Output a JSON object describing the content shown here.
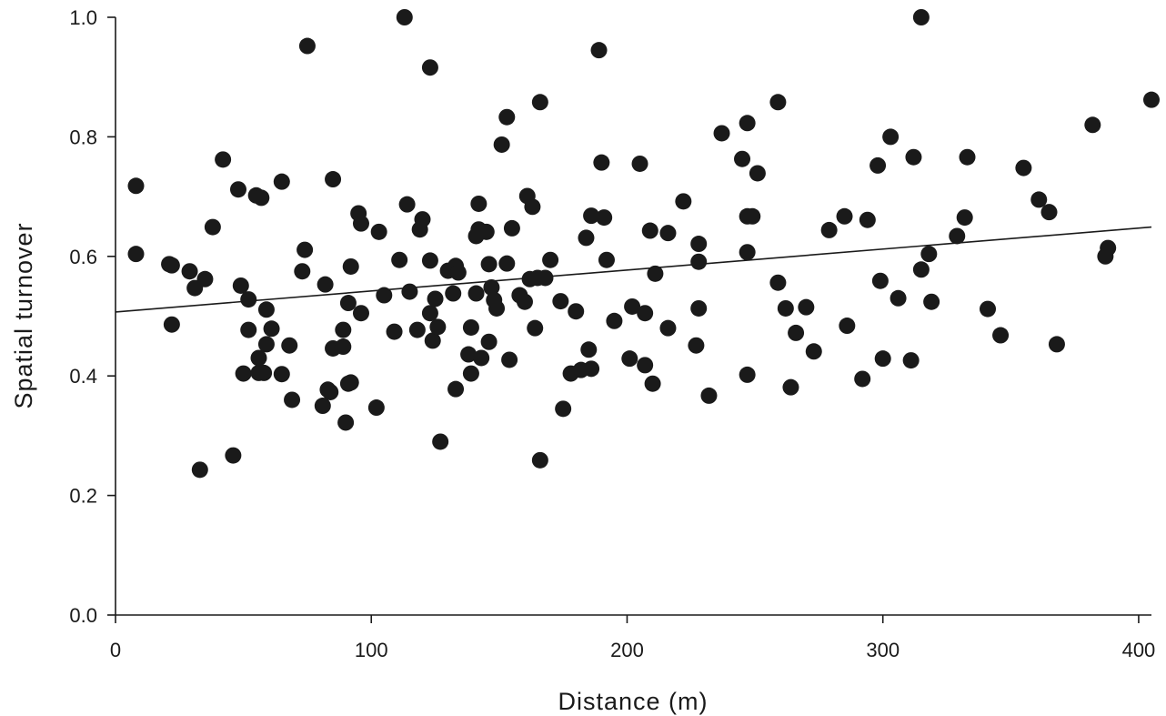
{
  "chart_data": {
    "type": "scatter",
    "title": "",
    "xlabel": "Distance (m)",
    "ylabel": "Spatial turnover",
    "xlim": [
      0,
      405
    ],
    "ylim": [
      0,
      1.0
    ],
    "xticks": [
      0,
      100,
      200,
      300,
      400
    ],
    "xtick_labels": [
      "0",
      "100",
      "200",
      "300",
      "400"
    ],
    "yticks": [
      0.0,
      0.2,
      0.4,
      0.6,
      0.8,
      1.0
    ],
    "ytick_labels": [
      "0.0",
      "0.2",
      "0.4",
      "0.6",
      "0.8",
      "1.0"
    ],
    "grid": false,
    "legend": "none",
    "point_color": "#1a1a1a",
    "trendline": {
      "x": [
        0,
        405
      ],
      "y": [
        0.507,
        0.649
      ]
    },
    "points": [
      [
        8,
        0.604
      ],
      [
        8,
        0.718
      ],
      [
        21,
        0.587
      ],
      [
        22,
        0.585
      ],
      [
        22,
        0.486
      ],
      [
        29,
        0.575
      ],
      [
        31,
        0.547
      ],
      [
        33,
        0.243
      ],
      [
        35,
        0.562
      ],
      [
        38,
        0.649
      ],
      [
        42,
        0.762
      ],
      [
        46,
        0.267
      ],
      [
        48,
        0.712
      ],
      [
        49,
        0.551
      ],
      [
        50,
        0.404
      ],
      [
        52,
        0.477
      ],
      [
        52,
        0.528
      ],
      [
        55,
        0.702
      ],
      [
        56,
        0.405
      ],
      [
        56,
        0.43
      ],
      [
        57,
        0.698
      ],
      [
        58,
        0.405
      ],
      [
        59,
        0.453
      ],
      [
        59,
        0.511
      ],
      [
        61,
        0.479
      ],
      [
        65,
        0.403
      ],
      [
        65,
        0.725
      ],
      [
        68,
        0.451
      ],
      [
        69,
        0.36
      ],
      [
        73,
        0.575
      ],
      [
        74,
        0.611
      ],
      [
        75,
        0.952
      ],
      [
        81,
        0.35
      ],
      [
        82,
        0.553
      ],
      [
        83,
        0.377
      ],
      [
        84,
        0.373
      ],
      [
        85,
        0.446
      ],
      [
        85,
        0.729
      ],
      [
        89,
        0.449
      ],
      [
        89,
        0.477
      ],
      [
        90,
        0.322
      ],
      [
        91,
        0.522
      ],
      [
        91,
        0.387
      ],
      [
        92,
        0.389
      ],
      [
        92,
        0.583
      ],
      [
        95,
        0.672
      ],
      [
        96,
        0.655
      ],
      [
        96,
        0.505
      ],
      [
        102,
        0.347
      ],
      [
        103,
        0.641
      ],
      [
        105,
        0.535
      ],
      [
        109,
        0.474
      ],
      [
        111,
        0.594
      ],
      [
        113,
        1.0
      ],
      [
        114,
        0.687
      ],
      [
        115,
        0.541
      ],
      [
        118,
        0.477
      ],
      [
        119,
        0.645
      ],
      [
        120,
        0.662
      ],
      [
        123,
        0.593
      ],
      [
        123,
        0.505
      ],
      [
        123,
        0.916
      ],
      [
        124,
        0.459
      ],
      [
        125,
        0.529
      ],
      [
        126,
        0.482
      ],
      [
        127,
        0.29
      ],
      [
        130,
        0.576
      ],
      [
        132,
        0.538
      ],
      [
        133,
        0.378
      ],
      [
        133,
        0.584
      ],
      [
        134,
        0.573
      ],
      [
        138,
        0.436
      ],
      [
        139,
        0.404
      ],
      [
        139,
        0.481
      ],
      [
        141,
        0.634
      ],
      [
        141,
        0.538
      ],
      [
        142,
        0.688
      ],
      [
        142,
        0.645
      ],
      [
        143,
        0.43
      ],
      [
        145,
        0.641
      ],
      [
        146,
        0.587
      ],
      [
        146,
        0.457
      ],
      [
        147,
        0.548
      ],
      [
        148,
        0.527
      ],
      [
        149,
        0.513
      ],
      [
        151,
        0.787
      ],
      [
        153,
        0.588
      ],
      [
        153,
        0.833
      ],
      [
        154,
        0.427
      ],
      [
        155,
        0.647
      ],
      [
        158,
        0.535
      ],
      [
        160,
        0.524
      ],
      [
        161,
        0.701
      ],
      [
        162,
        0.562
      ],
      [
        163,
        0.683
      ],
      [
        164,
        0.48
      ],
      [
        165,
        0.564
      ],
      [
        166,
        0.259
      ],
      [
        166,
        0.858
      ],
      [
        168,
        0.564
      ],
      [
        170,
        0.594
      ],
      [
        174,
        0.525
      ],
      [
        175,
        0.345
      ],
      [
        178,
        0.404
      ],
      [
        180,
        0.508
      ],
      [
        182,
        0.41
      ],
      [
        184,
        0.631
      ],
      [
        185,
        0.444
      ],
      [
        186,
        0.668
      ],
      [
        186,
        0.412
      ],
      [
        189,
        0.945
      ],
      [
        190,
        0.757
      ],
      [
        191,
        0.665
      ],
      [
        192,
        0.594
      ],
      [
        195,
        0.492
      ],
      [
        201,
        0.429
      ],
      [
        202,
        0.516
      ],
      [
        205,
        0.755
      ],
      [
        207,
        0.505
      ],
      [
        207,
        0.418
      ],
      [
        209,
        0.643
      ],
      [
        210,
        0.387
      ],
      [
        211,
        0.571
      ],
      [
        216,
        0.639
      ],
      [
        216,
        0.48
      ],
      [
        222,
        0.692
      ],
      [
        227,
        0.451
      ],
      [
        228,
        0.513
      ],
      [
        228,
        0.591
      ],
      [
        228,
        0.621
      ],
      [
        232,
        0.367
      ],
      [
        237,
        0.806
      ],
      [
        245,
        0.763
      ],
      [
        247,
        0.823
      ],
      [
        247,
        0.667
      ],
      [
        247,
        0.607
      ],
      [
        247,
        0.402
      ],
      [
        249,
        0.667
      ],
      [
        251,
        0.739
      ],
      [
        259,
        0.858
      ],
      [
        259,
        0.556
      ],
      [
        262,
        0.513
      ],
      [
        264,
        0.381
      ],
      [
        266,
        0.472
      ],
      [
        270,
        0.515
      ],
      [
        273,
        0.441
      ],
      [
        279,
        0.644
      ],
      [
        285,
        0.667
      ],
      [
        286,
        0.484
      ],
      [
        292,
        0.395
      ],
      [
        294,
        0.661
      ],
      [
        298,
        0.752
      ],
      [
        299,
        0.559
      ],
      [
        300,
        0.429
      ],
      [
        303,
        0.8
      ],
      [
        306,
        0.53
      ],
      [
        311,
        0.426
      ],
      [
        312,
        0.766
      ],
      [
        315,
        1.0
      ],
      [
        315,
        0.578
      ],
      [
        318,
        0.604
      ],
      [
        319,
        0.524
      ],
      [
        329,
        0.634
      ],
      [
        332,
        0.665
      ],
      [
        333,
        0.766
      ],
      [
        341,
        0.512
      ],
      [
        346,
        0.468
      ],
      [
        355,
        0.748
      ],
      [
        361,
        0.695
      ],
      [
        365,
        0.674
      ],
      [
        368,
        0.453
      ],
      [
        382,
        0.82
      ],
      [
        387,
        0.6
      ],
      [
        388,
        0.614
      ],
      [
        405,
        0.862
      ]
    ]
  }
}
